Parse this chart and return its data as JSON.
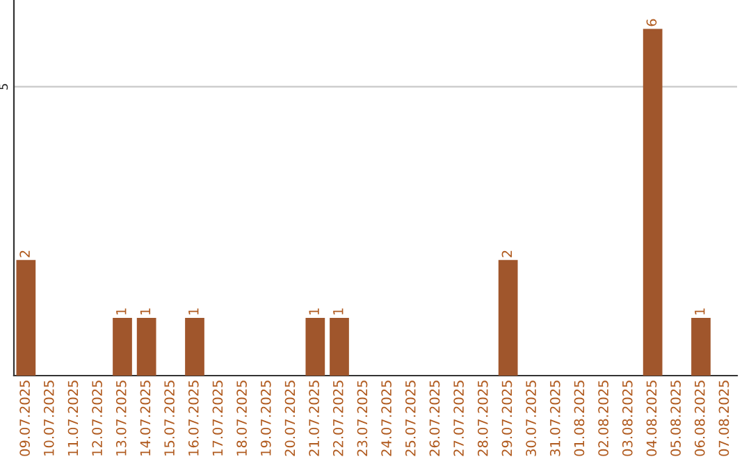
{
  "chart_data": {
    "type": "bar",
    "categories": [
      "09.07.2025",
      "10.07.2025",
      "11.07.2025",
      "12.07.2025",
      "13.07.2025",
      "14.07.2025",
      "15.07.2025",
      "16.07.2025",
      "17.07.2025",
      "18.07.2025",
      "19.07.2025",
      "20.07.2025",
      "21.07.2025",
      "22.07.2025",
      "23.07.2025",
      "24.07.2025",
      "25.07.2025",
      "26.07.2025",
      "27.07.2025",
      "28.07.2025",
      "29.07.2025",
      "30.07.2025",
      "31.07.2025",
      "01.08.2025",
      "02.08.2025",
      "03.08.2025",
      "04.08.2025",
      "05.08.2025",
      "06.08.2025",
      "07.08.2025"
    ],
    "values": [
      2,
      0,
      0,
      0,
      1,
      1,
      0,
      1,
      0,
      0,
      0,
      0,
      1,
      1,
      0,
      0,
      0,
      0,
      0,
      0,
      2,
      0,
      0,
      0,
      0,
      0,
      6,
      0,
      1,
      0
    ],
    "value_labels": [
      "2",
      null,
      null,
      null,
      "1",
      "1",
      null,
      "1",
      null,
      null,
      null,
      null,
      "1",
      "1",
      null,
      null,
      null,
      null,
      null,
      null,
      "2",
      null,
      null,
      null,
      null,
      null,
      "6",
      null,
      "1",
      null
    ],
    "color": "#a0562c",
    "ylim": [
      0,
      6.5
    ],
    "yticks": [
      5
    ],
    "grid": "y"
  }
}
